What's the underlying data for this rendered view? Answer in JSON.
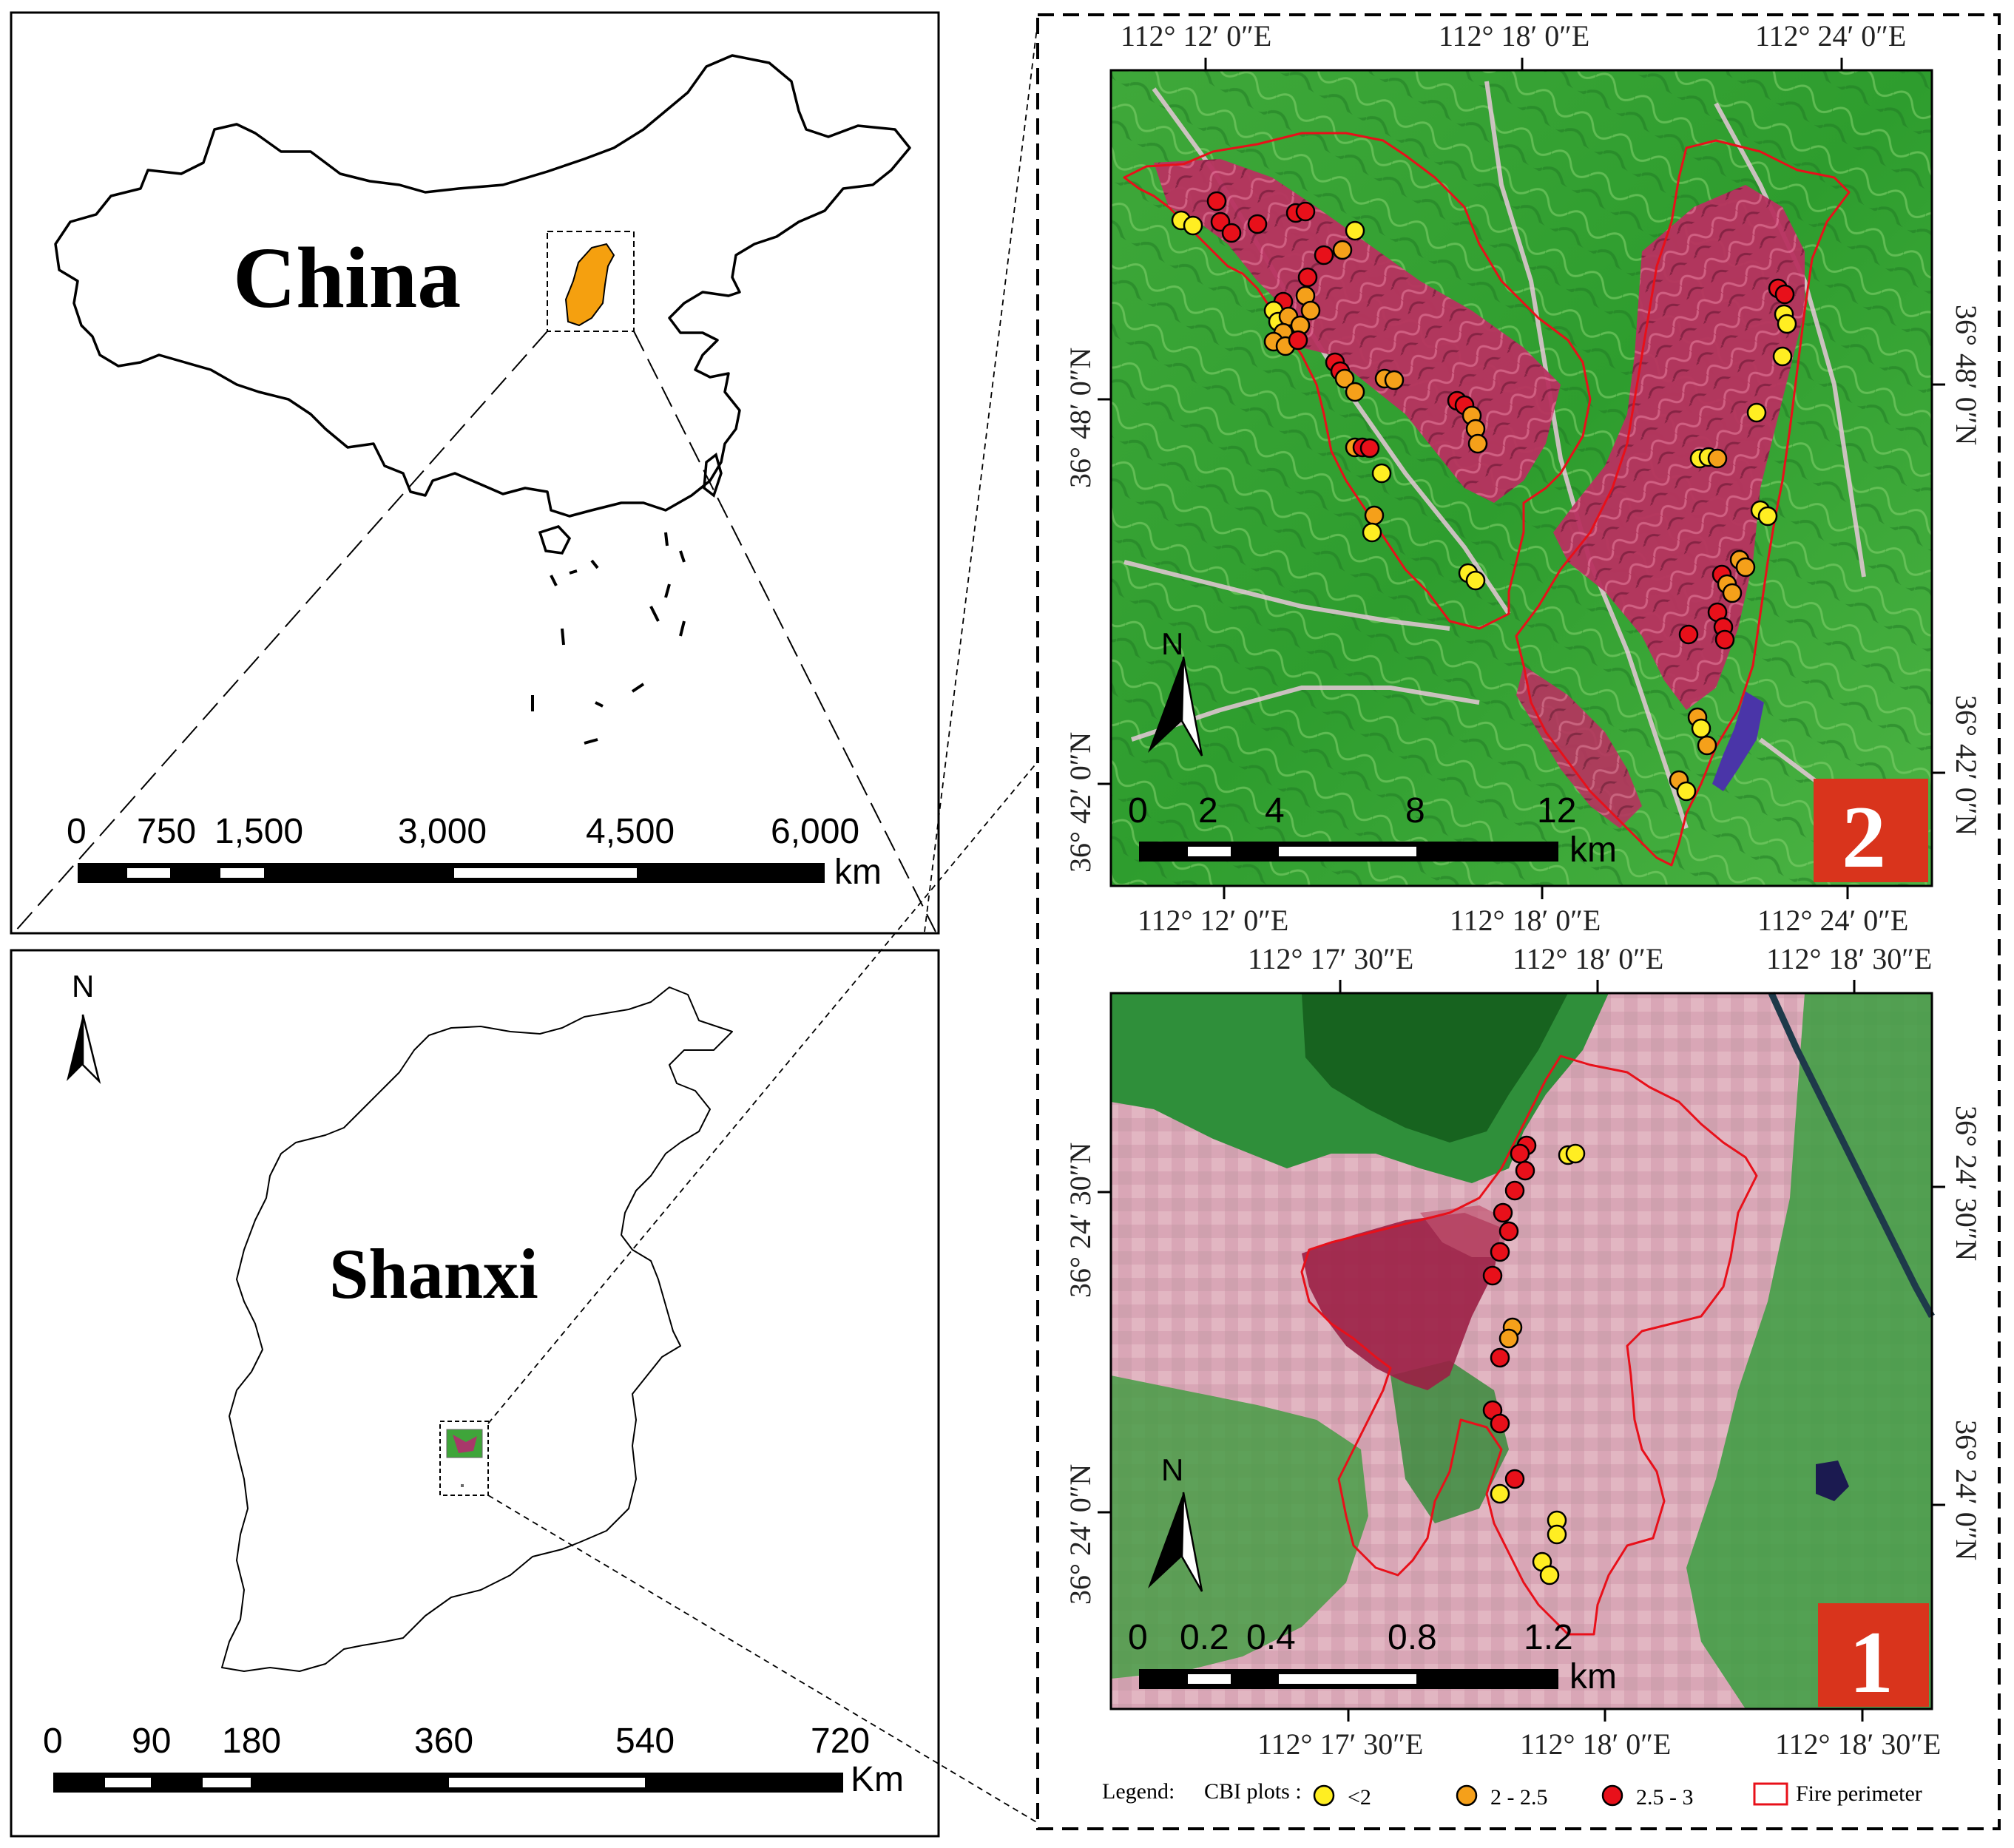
{
  "china_panel": {
    "title": "China",
    "scale_labels": [
      "0",
      "750",
      "1,500",
      "3,000",
      "4,500",
      "6,000"
    ],
    "scale_unit": "km",
    "highlight_color": "#f5a00f"
  },
  "shanxi_panel": {
    "title": "Shanxi",
    "north_label": "N",
    "scale_labels": [
      "0",
      "90",
      "180",
      "360",
      "540",
      "720"
    ],
    "scale_unit": "Km"
  },
  "site2": {
    "badge": "2",
    "badge_color": "#d9341c",
    "top_lon_labels": [
      "112°  12′ 0″E",
      "112°  18′ 0″E",
      "112°  24′ 0″E"
    ],
    "bottom_lon_labels": [
      "112°  12′ 0″E",
      "112°  18′ 0″E",
      "112°  24′ 0″E"
    ],
    "left_lat_labels": [
      "36°  48′ 0″N",
      "36°  42′ 0″N"
    ],
    "right_lat_labels": [
      "36°  48′ 0″N",
      "36°  42′ 0″N"
    ],
    "north_label": "N",
    "scale_labels": [
      "0",
      "2",
      "4",
      "8",
      "12"
    ],
    "scale_unit": "km"
  },
  "site1": {
    "badge": "1",
    "badge_color": "#d9341c",
    "top_lon_labels": [
      "112°  17′ 30″E",
      "112°  18′ 0″E",
      "112°  18′ 30″E"
    ],
    "bottom_lon_labels": [
      "112°  17′ 30″E",
      "112°  18′ 0″E",
      "112°  18′ 30″E"
    ],
    "left_lat_labels": [
      "36°  24′ 30″N",
      "36°  24′ 0″N"
    ],
    "right_lat_labels": [
      "36°  24′ 30″N",
      "36°  24′ 0″N"
    ],
    "north_label": "N",
    "scale_labels": [
      "0",
      "0.2",
      "0.4",
      "0.8",
      "1.2"
    ],
    "scale_unit": "km"
  },
  "legend": {
    "title": "Legend:",
    "plots_label": "CBI plots :",
    "classes": [
      {
        "label": "<2",
        "color": "#ffee22"
      },
      {
        "label": "2 - 2.5",
        "color": "#f5a01a"
      },
      {
        "label": "2.5 - 3",
        "color": "#e8101a"
      }
    ],
    "perimeter_label": "Fire perimeter",
    "perimeter_color": "#e8101a"
  }
}
